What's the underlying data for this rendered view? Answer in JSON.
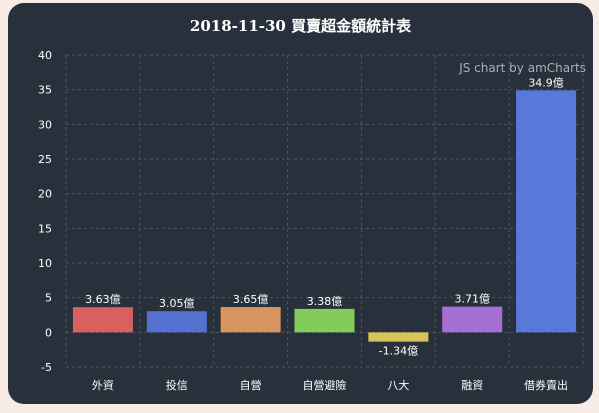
{
  "colors": {
    "background": "#28313b",
    "grid": "#4a5663",
    "axis_text": "#ffffff",
    "label_text": "#ffffff"
  },
  "watermark": "JS chart by amCharts",
  "chart_data": {
    "type": "bar",
    "title": "2018-11-30 買賣超金額統計表",
    "xlabel": "",
    "ylabel": "",
    "ylim": [
      -5,
      40
    ],
    "yticks": [
      -5,
      0,
      5,
      10,
      15,
      20,
      25,
      30,
      35,
      40
    ],
    "grid": true,
    "categories": [
      "外資",
      "投信",
      "自營",
      "自營避險",
      "八大",
      "融資",
      "借券賣出"
    ],
    "values": [
      3.63,
      3.05,
      3.65,
      3.38,
      -1.34,
      3.71,
      34.9
    ],
    "value_labels": [
      "3.63億",
      "3.05億",
      "3.65億",
      "3.38億",
      "-1.34億",
      "3.71億",
      "34.9億"
    ],
    "bar_colors": [
      "#d9605f",
      "#5470d0",
      "#d9955f",
      "#82cc5a",
      "#d6c45a",
      "#a66fd6",
      "#5879d9"
    ]
  }
}
